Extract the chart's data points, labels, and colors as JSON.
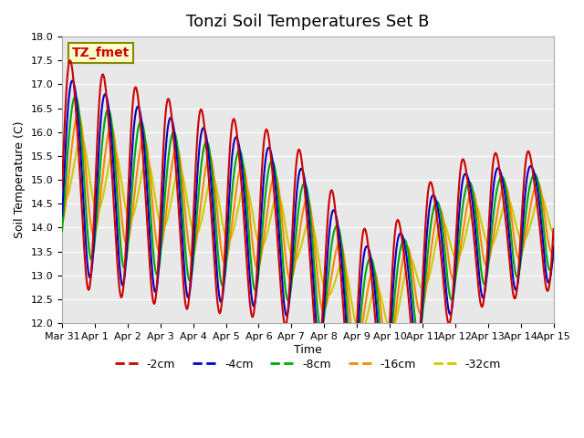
{
  "title": "Tonzi Soil Temperatures Set B",
  "xlabel": "Time",
  "ylabel": "Soil Temperature (C)",
  "ylim": [
    12.0,
    18.0
  ],
  "yticks": [
    12.0,
    12.5,
    13.0,
    13.5,
    14.0,
    14.5,
    15.0,
    15.5,
    16.0,
    16.5,
    17.0,
    17.5,
    18.0
  ],
  "xtick_positions": [
    0,
    1,
    2,
    3,
    4,
    5,
    6,
    7,
    8,
    9,
    10,
    11,
    12,
    13,
    14,
    15
  ],
  "xtick_labels": [
    "Mar 31",
    "Apr 1",
    "Apr 2",
    "Apr 3",
    "Apr 4",
    "Apr 5",
    "Apr 6",
    "Apr 7",
    "Apr 8",
    "Apr 9",
    "Apr 10",
    "Apr 11",
    "Apr 12",
    "Apr 13",
    "Apr 14",
    "Apr 15"
  ],
  "series": {
    "-2cm": {
      "color": "#cc0000",
      "lw": 1.5
    },
    "-4cm": {
      "color": "#0000cc",
      "lw": 1.5
    },
    "-8cm": {
      "color": "#00aa00",
      "lw": 1.5
    },
    "-16cm": {
      "color": "#ff8800",
      "lw": 1.5
    },
    "-32cm": {
      "color": "#cccc00",
      "lw": 1.5
    }
  },
  "legend_label": "TZ_fmet",
  "legend_bg": "#ffffcc",
  "legend_border": "#888800",
  "bg_color": "#e8e8e8",
  "xlim": [
    0,
    15
  ],
  "n_points": 721
}
